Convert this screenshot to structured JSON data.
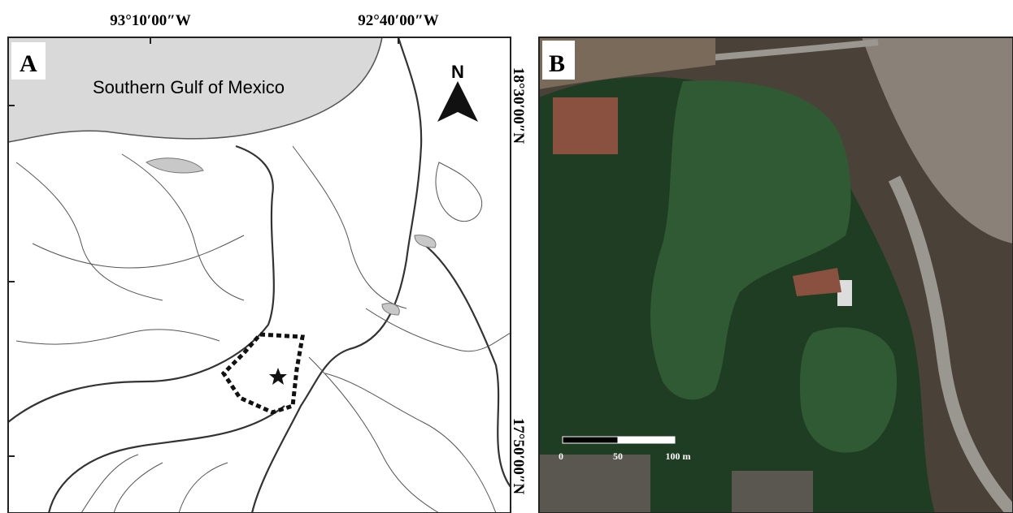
{
  "panel_a": {
    "label": "A",
    "sea_label": "Southern Gulf of Mexico",
    "north": "N",
    "longitudes": [
      "93°10′00″W",
      "92°40′00″W"
    ],
    "latitudes": [
      "18°30′00″N",
      "17°50′00″N"
    ]
  },
  "panel_b": {
    "label": "B",
    "scale_labels": [
      "0",
      "50",
      "100 m"
    ]
  }
}
